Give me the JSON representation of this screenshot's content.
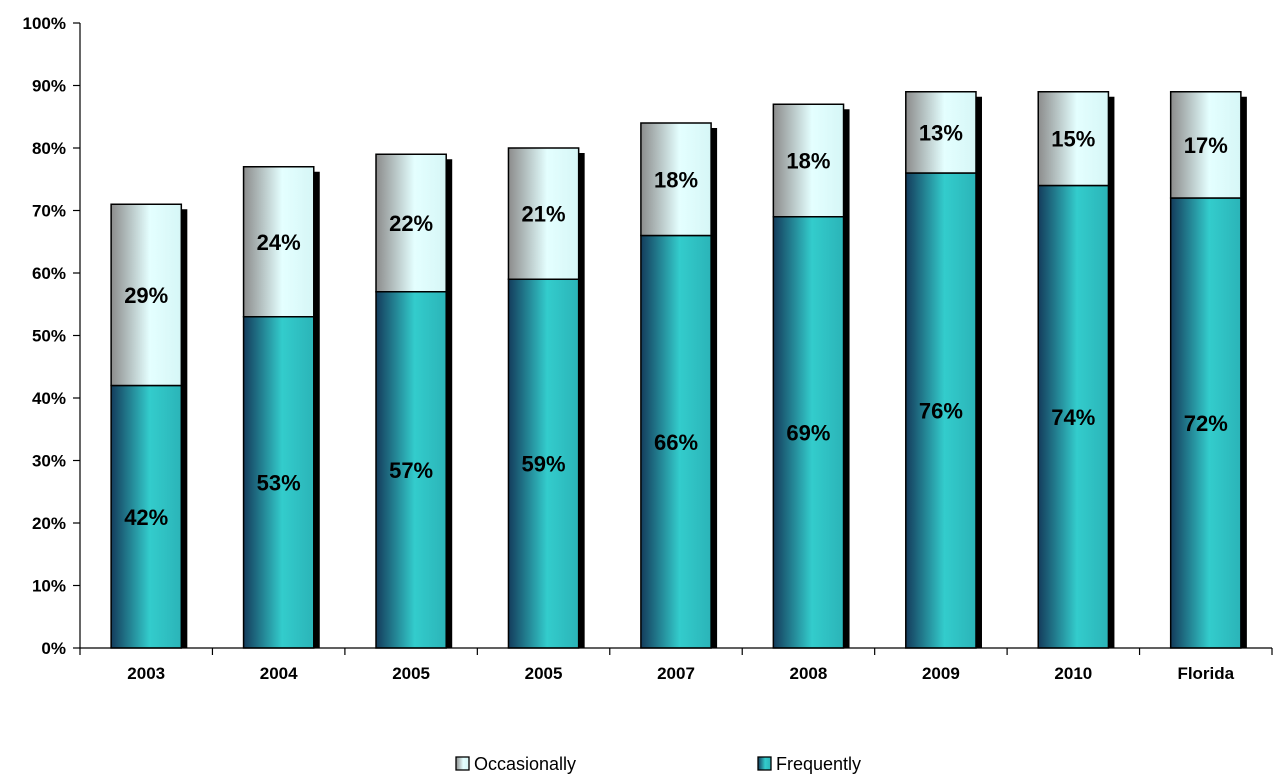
{
  "chart_data": {
    "type": "bar",
    "stacked": true,
    "categories": [
      "2003",
      "2004",
      "2005",
      "2005",
      "2007",
      "2008",
      "2009",
      "2010",
      "Florida"
    ],
    "series": [
      {
        "name": "Frequently",
        "values": [
          42,
          53,
          57,
          59,
          66,
          69,
          76,
          74,
          72
        ],
        "labels": [
          "42%",
          "53%",
          "57%",
          "59%",
          "66%",
          "69%",
          "76%",
          "74%",
          "72%"
        ]
      },
      {
        "name": "Occasionally",
        "values": [
          29,
          24,
          22,
          21,
          18,
          18,
          13,
          15,
          17
        ],
        "labels": [
          "29%",
          "24%",
          "22%",
          "21%",
          "18%",
          "18%",
          "13%",
          "15%",
          "17%"
        ]
      }
    ],
    "title": "",
    "xlabel": "",
    "ylabel": "",
    "ylim": [
      0,
      100
    ],
    "yticks": [
      0,
      10,
      20,
      30,
      40,
      50,
      60,
      70,
      80,
      90,
      100
    ],
    "ytick_labels": [
      "0%",
      "10%",
      "20%",
      "30%",
      "40%",
      "50%",
      "60%",
      "70%",
      "80%",
      "90%",
      "100%"
    ],
    "grid": false,
    "legend_position": "bottom",
    "legend": [
      {
        "name": "Occasionally",
        "color": "#c8f4f4"
      },
      {
        "name": "Frequently",
        "color": "#2fbcbc"
      }
    ],
    "colors": {
      "frequently_dark": "#143c5c",
      "frequently_light": "#33cccc",
      "occasionally_dark": "#8c8c8c",
      "occasionally_light": "#e4ffff",
      "shadow": "#000000"
    }
  }
}
